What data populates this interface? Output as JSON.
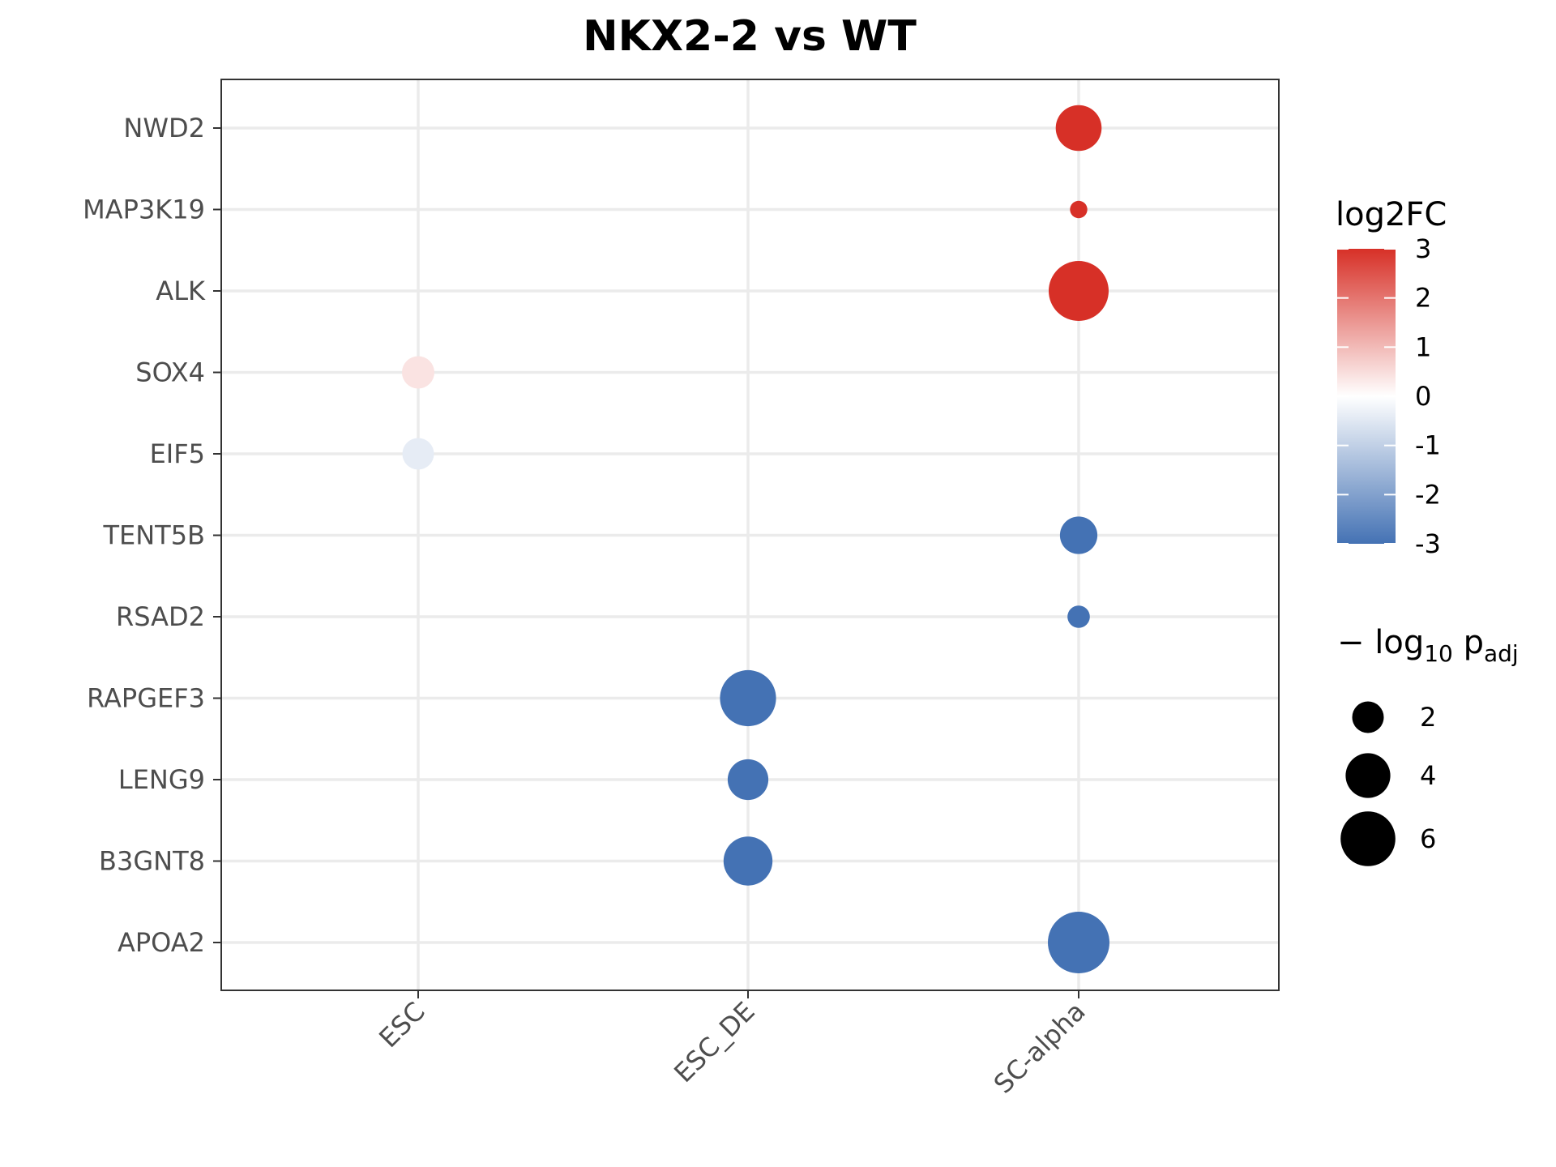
{
  "chart_data": {
    "type": "scatter",
    "title": "NKX2-2 vs WT",
    "xlabel": "",
    "ylabel": "",
    "categories_x": [
      "ESC",
      "ESC_DE",
      "SC-alpha"
    ],
    "categories_y": [
      "NWD2",
      "MAP3K19",
      "ALK",
      "SOX4",
      "EIF5",
      "TENT5B",
      "RSAD2",
      "RAPGEF3",
      "LENG9",
      "B3GNT8",
      "APOA2"
    ],
    "points": [
      {
        "x": "SC-alpha",
        "y": "NWD2",
        "log2FC": 3.0,
        "neglog10_padj": 4.2
      },
      {
        "x": "SC-alpha",
        "y": "MAP3K19",
        "log2FC": 3.0,
        "neglog10_padj": 0.6
      },
      {
        "x": "SC-alpha",
        "y": "ALK",
        "log2FC": 3.0,
        "neglog10_padj": 7.2
      },
      {
        "x": "ESC",
        "y": "SOX4",
        "log2FC": 0.4,
        "neglog10_padj": 2.1
      },
      {
        "x": "ESC",
        "y": "EIF5",
        "log2FC": -0.4,
        "neglog10_padj": 2.0
      },
      {
        "x": "SC-alpha",
        "y": "TENT5B",
        "log2FC": -3.0,
        "neglog10_padj": 2.8
      },
      {
        "x": "SC-alpha",
        "y": "RSAD2",
        "log2FC": -3.0,
        "neglog10_padj": 1.0
      },
      {
        "x": "ESC_DE",
        "y": "RAPGEF3",
        "log2FC": -3.0,
        "neglog10_padj": 6.3
      },
      {
        "x": "ESC_DE",
        "y": "LENG9",
        "log2FC": -3.0,
        "neglog10_padj": 3.3
      },
      {
        "x": "ESC_DE",
        "y": "B3GNT8",
        "log2FC": -3.0,
        "neglog10_padj": 4.8
      },
      {
        "x": "SC-alpha",
        "y": "APOA2",
        "log2FC": -3.0,
        "neglog10_padj": 7.6
      }
    ],
    "color_legend": {
      "title": "log2FC",
      "range": [
        -3,
        3
      ],
      "ticks": [
        "3",
        "2",
        "1",
        "0",
        "-1",
        "-2",
        "-3"
      ],
      "colors": {
        "low": "#4472b4",
        "mid": "#ffffff",
        "high": "#d73027"
      }
    },
    "size_legend": {
      "title_prefix": "− log",
      "title_sub1": "10",
      "title_mid": " p",
      "title_sub2": "adj",
      "entries": [
        {
          "label": "2",
          "value": 2
        },
        {
          "label": "4",
          "value": 4
        },
        {
          "label": "6",
          "value": 6
        }
      ]
    },
    "grid": true,
    "legend_placement": "right"
  }
}
